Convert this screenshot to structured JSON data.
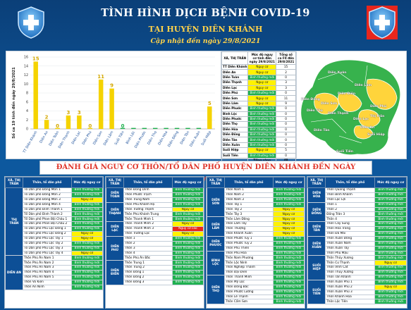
{
  "header": {
    "title": "TÌNH HÌNH DỊCH BỆNH COVID-19",
    "subtitle": "TẠI HUYỆN DIÊN KHÁNH",
    "updated": "Cập nhật đến ngày  29/8/2021"
  },
  "colors": {
    "green": "#1fb04f",
    "yellow": "#fff200",
    "red": "#e8261d",
    "blue": "#0d4f96"
  },
  "chart_data": {
    "type": "bar",
    "ylabel": "Số ca 19 tính đến ngày 29/8/2021",
    "ylim": [
      0,
      16
    ],
    "yticks": [
      "0",
      "2",
      "4",
      "6",
      "8",
      "10",
      "12",
      "14",
      "16"
    ],
    "categories": [
      "TT Diên Khánh",
      "Diên An",
      "Diên Toàn",
      "Diên Thạnh",
      "Diên Lạc",
      "Diên Phú",
      "Diên Sơn",
      "Diên Lâm",
      "Suối Tiên",
      "Bình Lộc",
      "Diên Phước",
      "Diên Thọ",
      "Diên Hòa",
      "Diên Đồng",
      "Diên Tân",
      "Diên Xuân",
      "Suối Hiệp"
    ],
    "values": [
      15,
      2,
      0,
      3,
      3,
      0,
      11,
      9,
      0,
      0,
      0,
      0,
      0,
      0,
      0,
      0,
      5
    ],
    "labels": [
      "15",
      "2",
      "0",
      "3",
      "3",
      "0",
      "11",
      "9",
      "0",
      "",
      "",
      "",
      "",
      "",
      "",
      "",
      "5"
    ],
    "bar_colors": [
      "#f5d300",
      "#f5d300",
      "#f5d300",
      "#f5d300",
      "#f5d300",
      "#f5d300",
      "#f5d300",
      "#f5d300",
      "#1fb04f",
      "#1fb04f",
      "#1fb04f",
      "#1fb04f",
      "#1fb04f",
      "#1fb04f",
      "#1fb04f",
      "#1fb04f",
      "#f5d300"
    ]
  },
  "summary_table": {
    "headers": [
      "XÃ, THỊ TRẤN",
      "Mức độ nguy cơ tính đến ngày 29/8/2021",
      "Tổng số ca F0 đến 29/8/2021"
    ],
    "rows": [
      {
        "name": "TT Diên Khánh",
        "level": "Nguy cơ",
        "lv": "y",
        "count": "15"
      },
      {
        "name": "Diên An",
        "level": "Nguy cơ",
        "lv": "y",
        "count": "2"
      },
      {
        "name": "Diên Toàn",
        "level": "Bình thường mới",
        "lv": "g",
        "count": "0"
      },
      {
        "name": "Diên Thạnh",
        "level": "Nguy cơ",
        "lv": "y",
        "count": "3"
      },
      {
        "name": "Diên Lạc",
        "level": "Nguy cơ",
        "lv": "y",
        "count": "3"
      },
      {
        "name": "Diên Phú",
        "level": "Bình thường mới",
        "lv": "g",
        "count": "0"
      },
      {
        "name": "Diên Sơn",
        "level": "Nguy cơ",
        "lv": "y",
        "count": "11"
      },
      {
        "name": "Diên Lâm",
        "level": "Nguy cơ",
        "lv": "y",
        "count": "9"
      },
      {
        "name": "Diên Phước",
        "level": "Bình thường mới",
        "lv": "g",
        "count": "0"
      },
      {
        "name": "Bình Lộc",
        "level": "Bình thường mới",
        "lv": "g",
        "count": "0"
      },
      {
        "name": "Diên Phước",
        "level": "Bình thường mới",
        "lv": "g",
        "count": "0"
      },
      {
        "name": "Diên Thọ",
        "level": "Bình thường mới",
        "lv": "g",
        "count": "0"
      },
      {
        "name": "Diên Hòa",
        "level": "Bình thường mới",
        "lv": "g",
        "count": "0"
      },
      {
        "name": "Diên Đồng",
        "level": "Bình thường mới",
        "lv": "g",
        "count": "0"
      },
      {
        "name": "Diên Tân",
        "level": "Bình thường mới",
        "lv": "g",
        "count": "0"
      },
      {
        "name": "Diên Xuân",
        "level": "Bình thường mới",
        "lv": "g",
        "count": "0"
      },
      {
        "name": "Suối Hiệp",
        "level": "Nguy cơ",
        "lv": "y",
        "count": "5"
      },
      {
        "name": "Suối Tiên",
        "level": "Bình thường mới",
        "lv": "g",
        "count": "0"
      }
    ],
    "total_label": "Tổng cộng",
    "total": "48"
  },
  "map": {
    "labels": [
      {
        "t": "Diên Xuân",
        "x": 44,
        "y": 28
      },
      {
        "t": "Diên Lâm",
        "x": 82,
        "y": 46
      },
      {
        "t": "Diên Đồng",
        "x": 6,
        "y": 66
      },
      {
        "t": "Diên Sơn",
        "x": 34,
        "y": 72
      },
      {
        "t": "Diên Điền",
        "x": 58,
        "y": 58
      },
      {
        "t": "Diên Phú",
        "x": 104,
        "y": 76
      },
      {
        "t": "Diên Thạnh",
        "x": 44,
        "y": 86
      },
      {
        "t": "Diên Lạc",
        "x": 80,
        "y": 94
      },
      {
        "t": "Thị trấn",
        "x": 104,
        "y": 90
      },
      {
        "t": "Diên Thọ",
        "x": 14,
        "y": 82
      },
      {
        "t": "Diên Tân",
        "x": 24,
        "y": 110
      },
      {
        "t": "Diên An",
        "x": 90,
        "y": 106
      },
      {
        "t": "Suối Hiệp",
        "x": 100,
        "y": 116
      },
      {
        "t": "Suối Tiên",
        "x": 56,
        "y": 140
      }
    ]
  },
  "banner": "ĐÁNH GIÁ NGUY CƠ THÔN/TỔ DÂN PHỐ HUYỆN DIÊN KHÁNH ĐẾN NGÀY 29/8/2021",
  "columns": [
    {
      "headers": [
        "XÃ, THỊ TRẤN",
        "Thôn, tổ dân phố",
        "Mức độ nguy cơ"
      ],
      "groups": [
        {
          "name": "THỊ TRẤN",
          "rows": [
            {
              "n": "Tổ Dân phố Đông Môn 1",
              "l": "Bình thường mới",
              "c": "g"
            },
            {
              "n": "Tổ Dân phố Đông Môn 2",
              "l": "Bình thường mới",
              "c": "g"
            },
            {
              "n": "Tổ Dân phố Đông Môn 3",
              "l": "Nguy cơ",
              "c": "y"
            },
            {
              "n": "Tổ Dân phố Đông Môn 4",
              "l": "Bình thường mới",
              "c": "g"
            },
            {
              "n": "Tổ Dân phố Đinh Thành 1",
              "l": "Bình thường mới",
              "c": "g"
            },
            {
              "n": "Tổ Dân phố Đinh Thành 2",
              "l": "Bình thường mới",
              "c": "g"
            },
            {
              "n": "Tổ Dân phố Phan Bội Châu 1",
              "l": "Bình thường mới",
              "c": "g"
            },
            {
              "n": "Tổ Dân phố Phan Bội Châu 2",
              "l": "Bình thường mới",
              "c": "g"
            },
            {
              "n": "Tổ Dân phố Phú Lộc Đông 1",
              "l": "Bình thường mới",
              "c": "g"
            },
            {
              "n": "Tổ Dân phố Phú Lộc Đông 2",
              "l": "Nguy cơ",
              "c": "y"
            },
            {
              "n": "Tổ Dân phố Phú Lộc Tây 1",
              "l": "Nguy cơ",
              "c": "y"
            },
            {
              "n": "Tổ Dân phố Phú Lộc Tây 2",
              "l": "Bình thường mới",
              "c": "g"
            },
            {
              "n": "Tổ Dân phố Phú Lộc Tây 3",
              "l": "Bình thường mới",
              "c": "g"
            },
            {
              "n": "Tổ Dân phố Phú Lộc Tây 4",
              "l": "Nguy cơ",
              "c": "y"
            }
          ]
        },
        {
          "name": "DIÊN AN",
          "rows": [
            {
              "n": "Thôn Phú Ân Nam 1",
              "l": "Bình thường mới",
              "c": "g"
            },
            {
              "n": "Thôn Phú Ân Nam 2",
              "l": "Bình thường mới",
              "c": "g"
            },
            {
              "n": "Thôn Phú Ân Nam 3",
              "l": "Bình thường mới",
              "c": "g"
            },
            {
              "n": "Thôn Phú Ân Nam 4",
              "l": "Bình thường mới",
              "c": "g"
            },
            {
              "n": "Thôn Phú Ân Nam 5",
              "l": "Bình thường mới",
              "c": "g"
            },
            {
              "n": "Thôn Võ Kiện",
              "l": "Bình thường mới",
              "c": "g"
            },
            {
              "n": "Thôn An Ninh",
              "l": "Bình thường mới",
              "c": "g"
            }
          ]
        }
      ]
    },
    {
      "headers": [
        "XÃ, THỊ TRẤN",
        "Thôn, tổ dân phố",
        "Mức độ nguy cơ"
      ],
      "groups": [
        {
          "name": "DIÊN TOÀN",
          "rows": [
            {
              "n": "Thôn Đồng Dinh",
              "l": "Bình thường mới",
              "c": "g"
            },
            {
              "n": "Thôn Phước Trạch",
              "l": "Bình thường mới",
              "c": "g"
            },
            {
              "n": "Thôn Trung Nam",
              "l": "Bình thường mới",
              "c": "g"
            }
          ]
        },
        {
          "name": "DIÊN THẠNH",
          "rows": [
            {
              "n": "Thôn Phú Khánh Hạ",
              "l": "Bình thường mới",
              "c": "g"
            },
            {
              "n": "Thôn Trường Thạnh",
              "l": "Nguy cơ",
              "c": "y"
            },
            {
              "n": "Thôn Phú Khánh Trung",
              "l": "Bình thường mới",
              "c": "g"
            },
            {
              "n": "Thôn Thanh Minh 1",
              "l": "Bình thường mới",
              "c": "g"
            }
          ]
        },
        {
          "name": "DIÊN LẠC",
          "rows": [
            {
              "n": "Thôn Thanh Minh 2",
              "l": "Nguy cơ",
              "c": "y"
            },
            {
              "n": "Thôn Thanh Minh 3",
              "l": "Nguy cơ cao",
              "c": "r"
            },
            {
              "n": "Thôn Trường Lạc",
              "l": "Nguy cơ",
              "c": "y"
            }
          ]
        },
        {
          "name": "DIÊN PHÚ",
          "rows": [
            {
              "n": "Thôn 1",
              "l": "Bình thường mới",
              "c": "g"
            },
            {
              "n": "Thôn 2",
              "l": "Bình thường mới",
              "c": "g"
            },
            {
              "n": "Thôn 3",
              "l": "Bình thường mới",
              "c": "g"
            },
            {
              "n": "Thôn 4",
              "l": "Bình thường mới",
              "c": "g"
            },
            {
              "n": "Thôn Phú Ân Bắc",
              "l": "Bình thường mới",
              "c": "g"
            }
          ]
        },
        {
          "name": "DIÊN ĐIỀN",
          "rows": [
            {
              "n": "Thôn Trung 1",
              "l": "Bình thường mới",
              "c": "g"
            },
            {
              "n": "Thôn Trung 2",
              "l": "Bình thường mới",
              "c": "g"
            },
            {
              "n": "Thôn Đông 1",
              "l": "Bình thường mới",
              "c": "g"
            },
            {
              "n": "Thôn Đông 2",
              "l": "Bình thường mới",
              "c": "g"
            },
            {
              "n": "Thôn Đông 3",
              "l": "Bình thường mới",
              "c": "g"
            }
          ]
        }
      ]
    },
    {
      "headers": [
        "XÃ, THỊ TRẤN",
        "Thôn, tổ dân phố",
        "Mức độ nguy cơ"
      ],
      "groups": [
        {
          "name": "DIÊN SƠN",
          "rows": [
            {
              "n": "Thôn Nam 1",
              "l": "Bình thường mới",
              "c": "g"
            },
            {
              "n": "Thôn Nam 2",
              "l": "Bình thường mới",
              "c": "g"
            },
            {
              "n": "Thôn Nam 3",
              "l": "Bình thường mới",
              "c": "g"
            },
            {
              "n": "Thôn Tây 1",
              "l": "Bình thường mới",
              "c": "g"
            },
            {
              "n": "Thôn Tây 2",
              "l": "Nguy cơ",
              "c": "y"
            },
            {
              "n": "Thôn Tây 3",
              "l": "Nguy cơ",
              "c": "y"
            }
          ]
        },
        {
          "name": "DIÊN LÂM",
          "rows": [
            {
              "n": "Thôn Lâm Đông",
              "l": "Nguy cơ",
              "c": "y"
            },
            {
              "n": "Thôn Lâm Tây",
              "l": "Nguy cơ",
              "c": "y"
            },
            {
              "n": "Thôn Thượng",
              "l": "Nguy cơ",
              "c": "y"
            },
            {
              "n": "Thôn Khánh Xuân",
              "l": "Nguy cơ",
              "c": "y"
            }
          ]
        },
        {
          "name": "DIÊN PHƯỚC",
          "rows": [
            {
              "n": "Thôn Phước Tuy 1",
              "l": "Bình thường mới",
              "c": "g"
            },
            {
              "n": "Thôn Phước Tuy 2",
              "l": "Bình thường mới",
              "c": "g"
            },
            {
              "n": "Thôn Phú Thiên",
              "l": "Bình thường mới",
              "c": "g"
            }
          ]
        },
        {
          "name": "BÌNH LỘC",
          "rows": [
            {
              "n": "Thôn Phú Hòa",
              "l": "Bình thường mới",
              "c": "g"
            },
            {
              "n": "Thôn Nam Phương",
              "l": "Bình thường mới",
              "c": "g"
            },
            {
              "n": "Thôn Lộc Ninh",
              "l": "Bình thường mới",
              "c": "g"
            },
            {
              "n": "Thôn Nghiệp Thành",
              "l": "Bình thường mới",
              "c": "g"
            },
            {
              "n": "Thôn Đại Điền",
              "l": "Bình thường mới",
              "c": "g"
            }
          ]
        },
        {
          "name": "DIÊN THỌ",
          "rows": [
            {
              "n": "Thôn Thanh Minh",
              "l": "Bình thường mới",
              "c": "g"
            },
            {
              "n": "Thôn Mỹ Lộc",
              "l": "Bình thường mới",
              "c": "g"
            },
            {
              "n": "Thôn Đông Bắc",
              "l": "Bình thường mới",
              "c": "g"
            },
            {
              "n": "Thôn Phước Lương",
              "l": "Bình thường mới",
              "c": "g"
            },
            {
              "n": "Thôn Lễ Thạnh",
              "l": "Bình thường mới",
              "c": "g"
            },
            {
              "n": "Thôn Cẩm Sơn",
              "l": "Bình thường mới",
              "c": "g"
            }
          ]
        }
      ]
    },
    {
      "headers": [
        "XÃ, THỊ TRẤN",
        "Thôn, tổ dân phố",
        "Mức độ nguy cơ"
      ],
      "groups": [
        {
          "name": "DIÊN HÒA",
          "rows": [
            {
              "n": "Thôn Quang Thạnh",
              "l": "Bình thường mới",
              "c": "g"
            },
            {
              "n": "Thôn Bình Khánh",
              "l": "Bình thường mới",
              "c": "g"
            },
            {
              "n": "Thôn Lạc Lợi",
              "l": "Bình thường mới",
              "c": "g"
            }
          ]
        },
        {
          "name": "DIÊN ĐỒNG",
          "rows": [
            {
              "n": "Thôn 1",
              "l": "Bình thường mới",
              "c": "g"
            },
            {
              "n": "Thôn 2",
              "l": "Bình thường mới",
              "c": "g"
            },
            {
              "n": "Đồng Trăn 3",
              "l": "Bình thường mới",
              "c": "g"
            },
            {
              "n": "Thôn 4",
              "l": "Bình thường mới",
              "c": "g"
            }
          ]
        },
        {
          "name": "DIÊN TÂN",
          "rows": [
            {
              "n": "Thôn Cây Sung",
              "l": "Bình thường mới",
              "c": "g"
            },
            {
              "n": "Thôn Hòa Trang",
              "l": "Bình thường mới",
              "c": "g"
            },
            {
              "n": "Thôn Đá Mài",
              "l": "Bình thường mới",
              "c": "g"
            }
          ]
        },
        {
          "name": "DIÊN XUÂN",
          "rows": [
            {
              "n": "Thôn Xuân Đông",
              "l": "Bình thường mới",
              "c": "g"
            },
            {
              "n": "Thôn Xuân Nam",
              "l": "Bình thường mới",
              "c": "g"
            },
            {
              "n": "Thôn Xuân Tây",
              "l": "Bình thường mới",
              "c": "g"
            },
            {
              "n": "Thôn Phú Mậu",
              "l": "Bình thường mới",
              "c": "g"
            }
          ]
        },
        {
          "name": "SUỐI HIỆP",
          "rows": [
            {
              "n": "Thôn Thủy Xương",
              "l": "Bình thường mới",
              "c": "g"
            },
            {
              "n": "Thôn Cư Thạnh",
              "l": "Nguy cơ",
              "c": "y"
            },
            {
              "n": "Thôn Vĩnh Cát",
              "l": "Bình thường mới",
              "c": "g"
            },
            {
              "n": "Thôn Thủy Xương",
              "l": "Bình thường mới",
              "c": "g"
            },
            {
              "n": "Thôn Tân Khánh",
              "l": "Bình thường mới",
              "c": "g"
            }
          ]
        },
        {
          "name": "SUỐI TIÊN",
          "rows": [
            {
              "n": "Thôn Xuân Phú 1",
              "l": "Bình thường mới",
              "c": "g"
            },
            {
              "n": "Thôn Xuân Phú 2",
              "l": "Nguy cơ",
              "c": "y"
            },
            {
              "n": "Thôn Xuân Phú 3",
              "l": "Bình thường mới",
              "c": "g"
            },
            {
              "n": "Thôn Khánh Hòa",
              "l": "Bình thường mới",
              "c": "g"
            },
            {
              "n": "Thôn Lộc Tiên",
              "l": "Bình thường mới",
              "c": "g"
            }
          ]
        }
      ]
    }
  ]
}
